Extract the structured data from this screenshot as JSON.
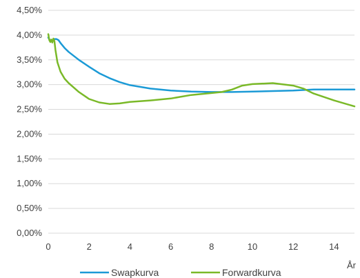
{
  "chart_data": {
    "type": "line",
    "xlabel": "År",
    "ylabel": "",
    "xlim": [
      0,
      15
    ],
    "ylim": [
      0,
      0.045
    ],
    "x_ticks": [
      0,
      2,
      4,
      6,
      8,
      10,
      12,
      14
    ],
    "x_tick_labels": [
      "0",
      "2",
      "4",
      "6",
      "8",
      "10",
      "12",
      "14"
    ],
    "y_ticks": [
      0,
      0.005,
      0.01,
      0.015,
      0.02,
      0.025,
      0.03,
      0.035,
      0.04,
      0.045
    ],
    "y_tick_labels": [
      "0,00%",
      "0,50%",
      "1,00%",
      "1,50%",
      "2,00%",
      "2,50%",
      "3,00%",
      "3,50%",
      "4,00%",
      "4,50%"
    ],
    "grid": "horizontal",
    "legend_position": "bottom",
    "series": [
      {
        "name": "Swapkurva",
        "color": "#1b9ad6",
        "points": [
          [
            0,
            0.0395
          ],
          [
            0.1,
            0.0388
          ],
          [
            0.2,
            0.0389
          ],
          [
            0.3,
            0.0392
          ],
          [
            0.4,
            0.0392
          ],
          [
            0.5,
            0.039
          ],
          [
            0.6,
            0.0384
          ],
          [
            0.8,
            0.0374
          ],
          [
            1,
            0.0366
          ],
          [
            1.5,
            0.035
          ],
          [
            2,
            0.0336
          ],
          [
            2.5,
            0.0323
          ],
          [
            3,
            0.0313
          ],
          [
            3.5,
            0.0305
          ],
          [
            4,
            0.0299
          ],
          [
            5,
            0.0292
          ],
          [
            6,
            0.0288
          ],
          [
            7,
            0.0286
          ],
          [
            8,
            0.0285
          ],
          [
            9,
            0.0285
          ],
          [
            10,
            0.0286
          ],
          [
            11,
            0.0287
          ],
          [
            12,
            0.0288
          ],
          [
            13,
            0.029
          ],
          [
            14,
            0.029
          ],
          [
            15,
            0.029
          ]
        ]
      },
      {
        "name": "Forwardkurva",
        "color": "#7ab928",
        "points": [
          [
            0,
            0.0402
          ],
          [
            0.05,
            0.039
          ],
          [
            0.1,
            0.0386
          ],
          [
            0.15,
            0.0391
          ],
          [
            0.2,
            0.0385
          ],
          [
            0.25,
            0.0393
          ],
          [
            0.3,
            0.0388
          ],
          [
            0.35,
            0.037
          ],
          [
            0.45,
            0.0345
          ],
          [
            0.6,
            0.0326
          ],
          [
            0.8,
            0.0312
          ],
          [
            1,
            0.0303
          ],
          [
            1.5,
            0.0285
          ],
          [
            2,
            0.0271
          ],
          [
            2.5,
            0.0264
          ],
          [
            3,
            0.0261
          ],
          [
            3.5,
            0.0262
          ],
          [
            4,
            0.0265
          ],
          [
            5,
            0.0268
          ],
          [
            6,
            0.0272
          ],
          [
            7,
            0.0279
          ],
          [
            8,
            0.0283
          ],
          [
            8.5,
            0.0285
          ],
          [
            9,
            0.029
          ],
          [
            9.5,
            0.0298
          ],
          [
            10,
            0.0301
          ],
          [
            11,
            0.0303
          ],
          [
            12,
            0.0298
          ],
          [
            12.5,
            0.0292
          ],
          [
            13,
            0.0282
          ],
          [
            14,
            0.0268
          ],
          [
            15,
            0.0256
          ]
        ]
      }
    ]
  }
}
